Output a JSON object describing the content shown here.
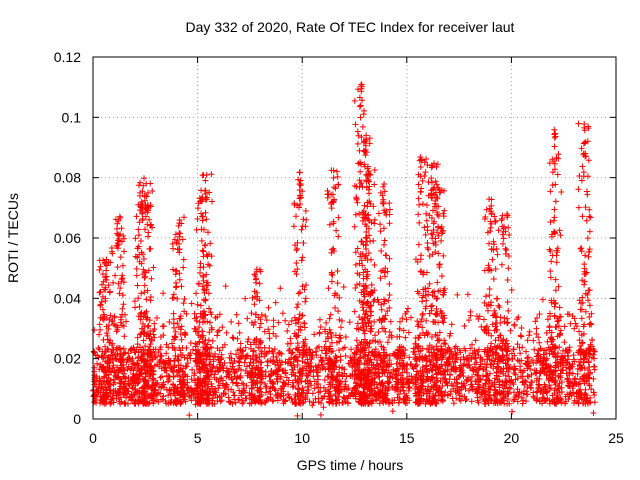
{
  "chart_data": {
    "type": "scatter",
    "title": "Day 332 of 2020, Rate Of TEC Index for receiver laut",
    "xlabel": "GPS time / hours",
    "ylabel": "ROTI / TECUs",
    "xlim": [
      0,
      25
    ],
    "ylim": [
      0,
      0.12
    ],
    "x_ticks": [
      0,
      5,
      10,
      15,
      20,
      25
    ],
    "x_tick_labels": [
      "0",
      "5",
      "10",
      "15",
      "20",
      "25"
    ],
    "y_ticks": [
      0,
      0.02,
      0.04,
      0.06,
      0.08,
      0.1,
      0.12
    ],
    "y_tick_labels": [
      "0",
      "0.02",
      "0.04",
      "0.06",
      "0.08",
      "0.1",
      "0.12"
    ],
    "grid": true,
    "marker": "+",
    "color": "#ff0000",
    "data_range_hours": [
      0,
      24
    ],
    "typical_band": [
      0.005,
      0.03
    ],
    "bursts": [
      {
        "x": 0.6,
        "peak": 0.053
      },
      {
        "x": 1.2,
        "peak": 0.069
      },
      {
        "x": 2.3,
        "peak": 0.079
      },
      {
        "x": 2.6,
        "peak": 0.08
      },
      {
        "x": 4.1,
        "peak": 0.067
      },
      {
        "x": 5.2,
        "peak": 0.074
      },
      {
        "x": 5.4,
        "peak": 0.083
      },
      {
        "x": 7.8,
        "peak": 0.05
      },
      {
        "x": 9.9,
        "peak": 0.082
      },
      {
        "x": 11.5,
        "peak": 0.083
      },
      {
        "x": 12.8,
        "peak": 0.111
      },
      {
        "x": 13.0,
        "peak": 0.095
      },
      {
        "x": 13.2,
        "peak": 0.086
      },
      {
        "x": 13.9,
        "peak": 0.08
      },
      {
        "x": 15.7,
        "peak": 0.087
      },
      {
        "x": 16.2,
        "peak": 0.085
      },
      {
        "x": 16.5,
        "peak": 0.077
      },
      {
        "x": 19.0,
        "peak": 0.073
      },
      {
        "x": 19.6,
        "peak": 0.069
      },
      {
        "x": 22.1,
        "peak": 0.096
      },
      {
        "x": 23.5,
        "peak": 0.098
      }
    ]
  }
}
